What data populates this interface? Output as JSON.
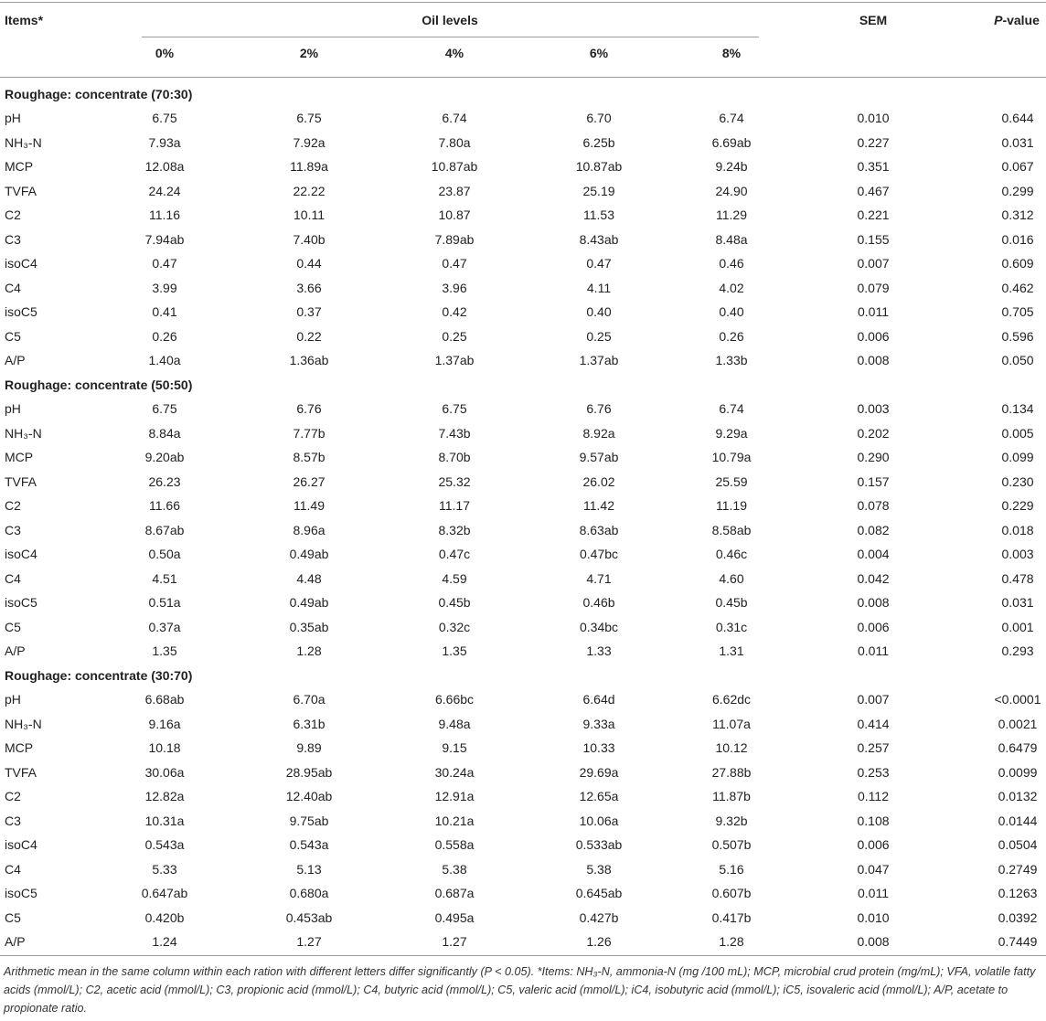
{
  "header": {
    "items": "Items*",
    "oil_levels": "Oil levels",
    "levels": [
      "0%",
      "2%",
      "4%",
      "6%",
      "8%"
    ],
    "sem": "SEM",
    "p_value": {
      "italic": "P",
      "rest": "-value"
    }
  },
  "sections": [
    {
      "title": "Roughage: concentrate (70:30)",
      "rows": [
        [
          "pH",
          "6.75",
          "6.75",
          "6.74",
          "6.70",
          "6.74",
          "0.010",
          "0.644"
        ],
        [
          "NH₃-N",
          "7.93a",
          "7.92a",
          "7.80a",
          "6.25b",
          "6.69ab",
          "0.227",
          "0.031"
        ],
        [
          "MCP",
          "12.08a",
          "11.89a",
          "10.87ab",
          "10.87ab",
          "9.24b",
          "0.351",
          "0.067"
        ],
        [
          "TVFA",
          "24.24",
          "22.22",
          "23.87",
          "25.19",
          "24.90",
          "0.467",
          "0.299"
        ],
        [
          "C2",
          "11.16",
          "10.11",
          "10.87",
          "11.53",
          "11.29",
          "0.221",
          "0.312"
        ],
        [
          "C3",
          "7.94ab",
          "7.40b",
          "7.89ab",
          "8.43ab",
          "8.48a",
          "0.155",
          "0.016"
        ],
        [
          "isoC4",
          "0.47",
          "0.44",
          "0.47",
          "0.47",
          "0.46",
          "0.007",
          "0.609"
        ],
        [
          "C4",
          "3.99",
          "3.66",
          "3.96",
          "4.11",
          "4.02",
          "0.079",
          "0.462"
        ],
        [
          "isoC5",
          "0.41",
          "0.37",
          "0.42",
          "0.40",
          "0.40",
          "0.011",
          "0.705"
        ],
        [
          "C5",
          "0.26",
          "0.22",
          "0.25",
          "0.25",
          "0.26",
          "0.006",
          "0.596"
        ],
        [
          "A/P",
          "1.40a",
          "1.36ab",
          "1.37ab",
          "1.37ab",
          "1.33b",
          "0.008",
          "0.050"
        ]
      ]
    },
    {
      "title": "Roughage: concentrate (50:50)",
      "rows": [
        [
          "pH",
          "6.75",
          "6.76",
          "6.75",
          "6.76",
          "6.74",
          "0.003",
          "0.134"
        ],
        [
          "NH₃-N",
          "8.84a",
          "7.77b",
          "7.43b",
          "8.92a",
          "9.29a",
          "0.202",
          "0.005"
        ],
        [
          "MCP",
          "9.20ab",
          "8.57b",
          "8.70b",
          "9.57ab",
          "10.79a",
          "0.290",
          "0.099"
        ],
        [
          "TVFA",
          "26.23",
          "26.27",
          "25.32",
          "26.02",
          "25.59",
          "0.157",
          "0.230"
        ],
        [
          "C2",
          "11.66",
          "11.49",
          "11.17",
          "11.42",
          "11.19",
          "0.078",
          "0.229"
        ],
        [
          "C3",
          "8.67ab",
          "8.96a",
          "8.32b",
          "8.63ab",
          "8.58ab",
          "0.082",
          "0.018"
        ],
        [
          "isoC4",
          "0.50a",
          "0.49ab",
          "0.47c",
          "0.47bc",
          "0.46c",
          "0.004",
          "0.003"
        ],
        [
          "C4",
          "4.51",
          "4.48",
          "4.59",
          "4.71",
          "4.60",
          "0.042",
          "0.478"
        ],
        [
          "isoC5",
          "0.51a",
          "0.49ab",
          "0.45b",
          "0.46b",
          "0.45b",
          "0.008",
          "0.031"
        ],
        [
          "C5",
          "0.37a",
          "0.35ab",
          "0.32c",
          "0.34bc",
          "0.31c",
          "0.006",
          "0.001"
        ],
        [
          "A/P",
          "1.35",
          "1.28",
          "1.35",
          "1.33",
          "1.31",
          "0.011",
          "0.293"
        ]
      ]
    },
    {
      "title": "Roughage: concentrate (30:70)",
      "rows": [
        [
          "pH",
          "6.68ab",
          "6.70a",
          "6.66bc",
          "6.64d",
          "6.62dc",
          "0.007",
          "<0.0001"
        ],
        [
          "NH₃-N",
          "9.16a",
          "6.31b",
          "9.48a",
          "9.33a",
          "11.07a",
          "0.414",
          "0.0021"
        ],
        [
          "MCP",
          "10.18",
          "9.89",
          "9.15",
          "10.33",
          "10.12",
          "0.257",
          "0.6479"
        ],
        [
          "TVFA",
          "30.06a",
          "28.95ab",
          "30.24a",
          "29.69a",
          "27.88b",
          "0.253",
          "0.0099"
        ],
        [
          "C2",
          "12.82a",
          "12.40ab",
          "12.91a",
          "12.65a",
          "11.87b",
          "0.112",
          "0.0132"
        ],
        [
          "C3",
          "10.31a",
          "9.75ab",
          "10.21a",
          "10.06a",
          "9.32b",
          "0.108",
          "0.0144"
        ],
        [
          "isoC4",
          "0.543a",
          "0.543a",
          "0.558a",
          "0.533ab",
          "0.507b",
          "0.006",
          "0.0504"
        ],
        [
          "C4",
          "5.33",
          "5.13",
          "5.38",
          "5.38",
          "5.16",
          "0.047",
          "0.2749"
        ],
        [
          "isoC5",
          "0.647ab",
          "0.680a",
          "0.687a",
          "0.645ab",
          "0.607b",
          "0.011",
          "0.1263"
        ],
        [
          "C5",
          "0.420b",
          "0.453ab",
          "0.495a",
          "0.427b",
          "0.417b",
          "0.010",
          "0.0392"
        ],
        [
          "A/P",
          "1.24",
          "1.27",
          "1.27",
          "1.26",
          "1.28",
          "0.008",
          "0.7449"
        ]
      ]
    }
  ],
  "footnote": "Arithmetic mean in the same column within each ration with different letters differ significantly (P < 0.05). *Items: NH₃-N, ammonia-N (mg /100 mL); MCP, microbial crud protein (mg/mL); VFA, volatile fatty acids (mmol/L); C2, acetic acid (mmol/L); C3, propionic acid (mmol/L); C4, butyric acid (mmol/L); C5, valeric acid (mmol/L); iC4, isobutyric acid (mmol/L); iC5, isovaleric acid (mmol/L); A/P, acetate to propionate ratio."
}
